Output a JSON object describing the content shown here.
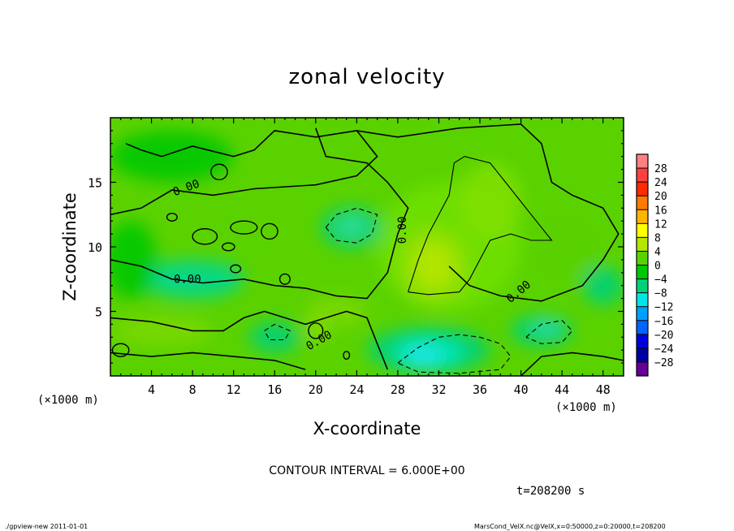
{
  "chart_data": {
    "type": "heatmap",
    "title": "zonal velocity",
    "xlabel": "X-coordinate",
    "ylabel": "Z-coordinate",
    "x_unit": "(×1000 m)",
    "y_unit": "(×1000 m)",
    "xlim": [
      0,
      50
    ],
    "ylim": [
      0,
      20
    ],
    "x_ticks": [
      4,
      8,
      12,
      16,
      20,
      24,
      28,
      32,
      36,
      40,
      44,
      48
    ],
    "y_ticks": [
      5,
      10,
      15
    ],
    "contour_label": "0.00",
    "contour_interval_text": "CONTOUR INTERVAL = 6.000E+00",
    "time_text": "t=208200 s",
    "colorbar": {
      "levels": [
        28,
        24,
        20,
        16,
        12,
        8,
        4,
        0,
        -4,
        -8,
        -12,
        -16,
        -20,
        -24,
        -28
      ],
      "labels": [
        "28",
        "24",
        "20",
        "16",
        "12",
        "8",
        "4",
        "0",
        "−4",
        "−8",
        "−12",
        "−16",
        "−20",
        "−24",
        "−28"
      ],
      "colors": [
        "#ff8080",
        "#ff4040",
        "#ff2a00",
        "#ff7a00",
        "#ffb400",
        "#ffff00",
        "#b4e600",
        "#5ad200",
        "#00c800",
        "#00d278",
        "#00e6e6",
        "#00a0ff",
        "#0064ff",
        "#0000dc",
        "#0000a0",
        "#640096"
      ]
    },
    "features": [
      {
        "kind": "positive-core",
        "x": 31.5,
        "z": 8.5,
        "value": 6
      },
      {
        "kind": "positive-branch",
        "x": 37,
        "z": 13,
        "value": 6
      },
      {
        "kind": "negative-core",
        "x": 31,
        "z": 2,
        "value": -6
      },
      {
        "kind": "negative-core",
        "x": 23.5,
        "z": 11.5,
        "value": -6
      },
      {
        "kind": "negative-core",
        "x": 42,
        "z": 3.5,
        "value": -6
      },
      {
        "kind": "negative-core",
        "x": 16,
        "z": 3,
        "value": -5
      }
    ]
  },
  "footer": {
    "left": "./gpview-new   2011-01-01",
    "right": "MarsCond_VelX.nc@VelX,x=0:50000,z=0:20000,t=208200"
  }
}
